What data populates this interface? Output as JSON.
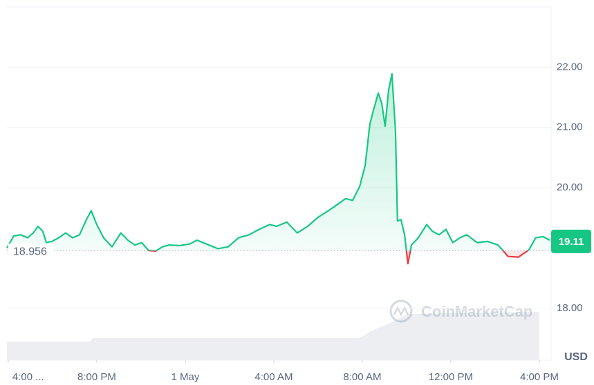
{
  "chart_data": {
    "type": "line",
    "watermark": "CoinMarketCap",
    "currency": "USD",
    "baseline": 18.956,
    "current_price": 19.11,
    "colors": {
      "up": "#16c784",
      "down": "#ea3943"
    },
    "x": [
      -0.06,
      0.25,
      0.56,
      0.88,
      1.13,
      1.34,
      1.56,
      1.72,
      1.97,
      2.28,
      2.59,
      2.91,
      3.22,
      3.53,
      3.75,
      4.0,
      4.31,
      4.69,
      5.09,
      5.41,
      5.72,
      6.03,
      6.34,
      6.66,
      6.97,
      7.28,
      7.75,
      8.22,
      8.53,
      9.0,
      9.47,
      9.94,
      10.41,
      10.88,
      11.34,
      11.81,
      12.13,
      12.59,
      13.06,
      13.53,
      14.0,
      14.47,
      14.94,
      15.25,
      15.56,
      15.88,
      16.13,
      16.34,
      16.5,
      16.72,
      16.88,
      17.03,
      17.19,
      17.34,
      17.5,
      17.59,
      17.75,
      17.91,
      18.06,
      18.22,
      18.53,
      18.91,
      19.16,
      19.47,
      19.78,
      20.09,
      20.41,
      20.72,
      21.19,
      21.66,
      22.13,
      22.59,
      23.06,
      23.53,
      23.84,
      24.16,
      24.47
    ],
    "values": [
      19.0,
      19.2,
      19.22,
      19.17,
      19.25,
      19.36,
      19.28,
      19.09,
      19.11,
      19.17,
      19.25,
      19.17,
      19.22,
      19.47,
      19.62,
      19.39,
      19.17,
      19.02,
      19.25,
      19.13,
      19.05,
      19.09,
      18.96,
      18.95,
      19.02,
      19.05,
      19.04,
      19.07,
      19.13,
      19.06,
      18.99,
      19.02,
      19.17,
      19.22,
      19.31,
      19.39,
      19.36,
      19.43,
      19.25,
      19.36,
      19.51,
      19.62,
      19.74,
      19.82,
      19.79,
      20.02,
      20.37,
      21.05,
      21.28,
      21.57,
      21.4,
      21.02,
      21.62,
      21.89,
      20.94,
      19.45,
      19.47,
      19.22,
      18.74,
      19.05,
      19.17,
      19.39,
      19.28,
      19.22,
      19.31,
      19.09,
      19.17,
      19.22,
      19.09,
      19.11,
      19.05,
      18.86,
      18.85,
      18.97,
      19.17,
      19.19,
      19.13
    ],
    "xlim": [
      -0.06,
      24.47
    ],
    "ylim": [
      17.14,
      23.0
    ],
    "xticks": [
      {
        "value": 0,
        "label": "4:00 ..."
      },
      {
        "value": 4,
        "label": "8:00 PM"
      },
      {
        "value": 8,
        "label": "1 May"
      },
      {
        "value": 12,
        "label": "4:00 AM"
      },
      {
        "value": 16,
        "label": "8:00 AM"
      },
      {
        "value": 20,
        "label": "12:00 PM"
      },
      {
        "value": 24,
        "label": "4:00 PM"
      }
    ],
    "yticks": [
      {
        "value": 18,
        "label": "18.00"
      },
      {
        "value": 20,
        "label": "20.00"
      },
      {
        "value": 21,
        "label": "21.00"
      },
      {
        "value": 22,
        "label": "22.00"
      }
    ],
    "grid": true
  }
}
